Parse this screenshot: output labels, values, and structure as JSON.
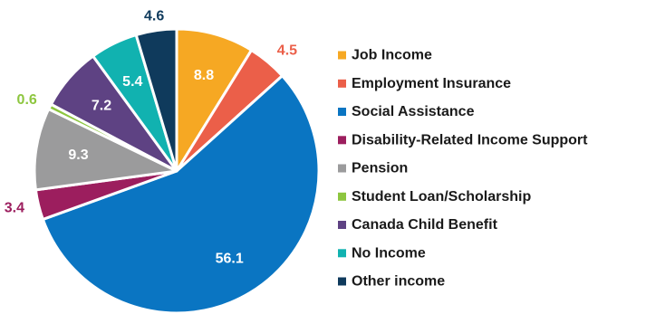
{
  "chart_data": {
    "type": "pie",
    "start_angle_deg": 0,
    "direction": "clockwise",
    "legend_position": "right",
    "slices": [
      {
        "label": "Job Income",
        "value": 8.8,
        "value_text": "8.8",
        "color": "#F6A823",
        "label_placement": "inside"
      },
      {
        "label": "Employment Insurance",
        "value": 4.5,
        "value_text": "4.5",
        "color": "#EB5F49",
        "label_placement": "outside"
      },
      {
        "label": "Social Assistance",
        "value": 56.1,
        "value_text": "56.1",
        "color": "#0A75C2",
        "label_placement": "inside"
      },
      {
        "label": "Disability-Related Income Support",
        "value": 3.4,
        "value_text": "3.4",
        "color": "#9C1E5E",
        "label_placement": "outside"
      },
      {
        "label": "Pension",
        "value": 9.3,
        "value_text": "9.3",
        "color": "#9B9B9C",
        "label_placement": "inside"
      },
      {
        "label": "Student Loan/Scholarship",
        "value": 0.6,
        "value_text": "0.6",
        "color": "#8DC63F",
        "label_placement": "outside"
      },
      {
        "label": "Canada Child Benefit",
        "value": 7.2,
        "value_text": "7.2",
        "color": "#5E4283",
        "label_placement": "inside"
      },
      {
        "label": "No Income",
        "value": 5.4,
        "value_text": "5.4",
        "color": "#11B2B0",
        "label_placement": "inside"
      },
      {
        "label": "Other income",
        "value": 4.6,
        "value_text": "4.6",
        "color": "#0F3A5C",
        "label_placement": "outside"
      }
    ]
  }
}
